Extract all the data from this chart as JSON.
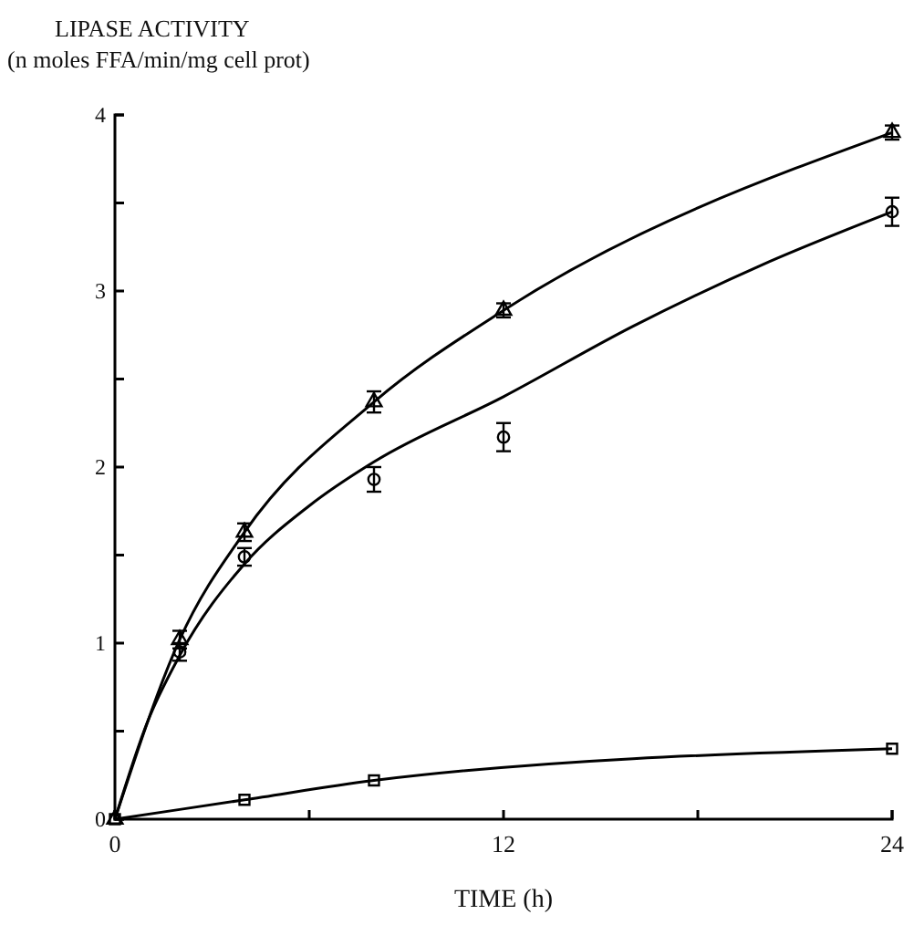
{
  "chart_data": {
    "type": "line",
    "xlabel": "TIME (h)",
    "ylabel": "LIPASE ACTIVITY\n(n moles FFA/min/mg cell prot)",
    "x": [
      0,
      2,
      4,
      8,
      12,
      24
    ],
    "xlim": [
      0,
      24
    ],
    "ylim": [
      0,
      4
    ],
    "xticks": [
      0,
      {
        "value": 6,
        "label": null
      },
      12,
      {
        "value": 18,
        "label": null
      },
      24
    ],
    "yticks": [
      0,
      {
        "value": 0.5,
        "label": null
      },
      1,
      {
        "value": 1.5,
        "label": null
      },
      2,
      {
        "value": 2.5,
        "label": null
      },
      3,
      {
        "value": 3.5,
        "label": null
      },
      4
    ],
    "grid": false,
    "line_style": "solid",
    "series": [
      {
        "type": "line",
        "marker": "square",
        "color": "#000000",
        "x": [
          0,
          4,
          8,
          24
        ],
        "values": [
          0,
          0.11,
          0.22,
          0.4
        ]
      },
      {
        "type": "line",
        "marker": "triangle",
        "color": "#000000",
        "values": [
          0,
          1.02,
          1.63,
          2.37,
          2.89,
          3.9
        ],
        "errors": [
          null,
          0.05,
          0.05,
          0.06,
          0.04,
          0.04
        ]
      },
      {
        "type": "scatter",
        "marker": "circle",
        "color": "#000000",
        "x": [
          2,
          4,
          8,
          12,
          24
        ],
        "values": [
          0.95,
          1.49,
          1.93,
          2.17,
          3.45
        ],
        "errors": [
          0.05,
          0.05,
          0.07,
          0.08,
          0.08
        ]
      },
      {
        "type": "line",
        "marker": "none",
        "color": "#000000",
        "x": [
          0,
          1,
          2,
          4,
          6,
          8,
          12,
          16,
          20,
          24
        ],
        "values": [
          0,
          0.55,
          0.93,
          1.45,
          1.78,
          2.03,
          2.4,
          2.8,
          3.15,
          3.45
        ]
      }
    ]
  }
}
